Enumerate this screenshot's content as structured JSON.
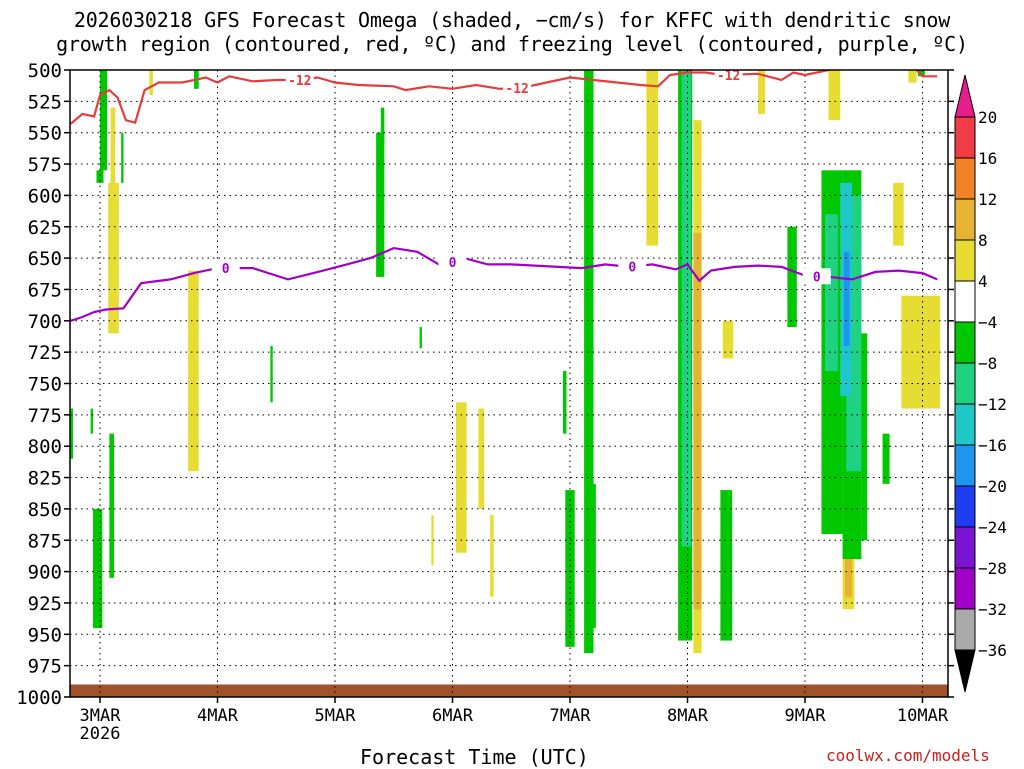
{
  "chart_data": {
    "type": "heatmap",
    "title_line1": "2026030218 GFS Forecast Omega (shaded, −cm/s) for KFFC with dendritic snow",
    "title_line2": "growth region (contoured, red, ºC) and freezing level (contoured, purple, ºC)",
    "xlabel": "Forecast Time (UTC)",
    "ylabel": "",
    "x_ticks": [
      "3MAR",
      "4MAR",
      "5MAR",
      "6MAR",
      "7MAR",
      "8MAR",
      "9MAR",
      "10MAR"
    ],
    "x_sub_label": "2026",
    "y_ticks": [
      500,
      525,
      550,
      575,
      600,
      625,
      650,
      675,
      700,
      725,
      750,
      775,
      800,
      825,
      850,
      875,
      900,
      925,
      950,
      975,
      1000
    ],
    "ylim": [
      500,
      1000
    ],
    "xlim_days": [
      2.75,
      10.125
    ],
    "colorbar": {
      "labels": [
        "20",
        "16",
        "12",
        "8",
        "4",
        "−4",
        "−8",
        "−12",
        "−16",
        "−20",
        "−24",
        "−28",
        "−32",
        "−36"
      ],
      "colors": [
        "#f03c46",
        "#f08228",
        "#e6b432",
        "#e6dc32",
        "#ffffff",
        "#00c800",
        "#1ed282",
        "#1ec8c8",
        "#1e96f0",
        "#1e3cf0",
        "#7814d2",
        "#a000c8",
        "#aaaaaa"
      ],
      "top_arrow_color": "#e61e8c",
      "bottom_arrow_color": "#000000"
    },
    "contour_minus12": {
      "label": "-12",
      "color": "#e63c3c",
      "points": [
        [
          2.75,
          543
        ],
        [
          2.85,
          535
        ],
        [
          2.95,
          537
        ],
        [
          3.0,
          520
        ],
        [
          3.08,
          516
        ],
        [
          3.15,
          522
        ],
        [
          3.22,
          540
        ],
        [
          3.3,
          542
        ],
        [
          3.38,
          516
        ],
        [
          3.5,
          510
        ],
        [
          3.7,
          510
        ],
        [
          3.9,
          506
        ],
        [
          4.0,
          510
        ],
        [
          4.1,
          505
        ],
        [
          4.3,
          509
        ],
        [
          4.5,
          508
        ],
        [
          4.7,
          508
        ],
        [
          4.85,
          506
        ],
        [
          5.0,
          510
        ],
        [
          5.2,
          512
        ],
        [
          5.5,
          513
        ],
        [
          5.6,
          516
        ],
        [
          5.8,
          513
        ],
        [
          6.0,
          515
        ],
        [
          6.2,
          512
        ],
        [
          6.4,
          515
        ],
        [
          6.6,
          514
        ],
        [
          6.8,
          510
        ],
        [
          7.0,
          506
        ],
        [
          7.2,
          508
        ],
        [
          7.4,
          510
        ],
        [
          7.6,
          512
        ],
        [
          7.75,
          513
        ],
        [
          7.85,
          504
        ],
        [
          8.0,
          502
        ],
        [
          8.15,
          502
        ],
        [
          8.3,
          504
        ],
        [
          8.6,
          503
        ],
        [
          8.8,
          508
        ],
        [
          8.9,
          502
        ],
        [
          9.0,
          504
        ],
        [
          9.2,
          500
        ],
        [
          9.4,
          497
        ],
        [
          9.5,
          490
        ],
        [
          9.6,
          495
        ],
        [
          9.7,
          493
        ],
        [
          9.9,
          495
        ],
        [
          10.0,
          505
        ],
        [
          10.125,
          505
        ]
      ]
    },
    "contour_zero": {
      "label": "0",
      "color": "#a000c8",
      "points": [
        [
          2.75,
          700
        ],
        [
          2.85,
          697
        ],
        [
          2.95,
          693
        ],
        [
          3.05,
          691
        ],
        [
          3.2,
          690
        ],
        [
          3.35,
          670
        ],
        [
          3.6,
          667
        ],
        [
          3.8,
          662
        ],
        [
          4.0,
          658
        ],
        [
          4.3,
          658
        ],
        [
          4.6,
          667
        ],
        [
          4.9,
          660
        ],
        [
          5.1,
          655
        ],
        [
          5.3,
          650
        ],
        [
          5.5,
          642
        ],
        [
          5.7,
          645
        ],
        [
          5.9,
          656
        ],
        [
          6.1,
          650
        ],
        [
          6.3,
          655
        ],
        [
          6.5,
          655
        ],
        [
          6.7,
          656
        ],
        [
          6.9,
          657
        ],
        [
          7.1,
          658
        ],
        [
          7.3,
          655
        ],
        [
          7.5,
          657
        ],
        [
          7.7,
          655
        ],
        [
          7.9,
          659
        ],
        [
          8.0,
          655
        ],
        [
          8.1,
          668
        ],
        [
          8.2,
          660
        ],
        [
          8.4,
          657
        ],
        [
          8.6,
          656
        ],
        [
          8.8,
          657
        ],
        [
          9.0,
          664
        ],
        [
          9.2,
          665
        ],
        [
          9.4,
          667
        ],
        [
          9.6,
          661
        ],
        [
          9.8,
          660
        ],
        [
          10.0,
          662
        ],
        [
          10.125,
          667
        ]
      ]
    },
    "shaded_cells": [
      {
        "x0": 3.07,
        "x1": 3.16,
        "p0": 590,
        "p1": 710,
        "c": 3
      },
      {
        "x0": 3.09,
        "x1": 3.13,
        "p0": 530,
        "p1": 590,
        "c": 3
      },
      {
        "x0": 3.75,
        "x1": 3.84,
        "p0": 660,
        "p1": 820,
        "c": 3
      },
      {
        "x0": 3.42,
        "x1": 3.45,
        "p0": 497,
        "p1": 520,
        "c": 3
      },
      {
        "x0": 6.03,
        "x1": 6.12,
        "p0": 765,
        "p1": 885,
        "c": 3
      },
      {
        "x0": 6.22,
        "x1": 6.27,
        "p0": 770,
        "p1": 850,
        "c": 3
      },
      {
        "x0": 6.32,
        "x1": 6.35,
        "p0": 855,
        "p1": 920,
        "c": 3
      },
      {
        "x0": 5.82,
        "x1": 5.84,
        "p0": 855,
        "p1": 895,
        "c": 3
      },
      {
        "x0": 7.65,
        "x1": 7.75,
        "p0": 500,
        "p1": 640,
        "c": 3
      },
      {
        "x0": 8.05,
        "x1": 8.12,
        "p0": 540,
        "p1": 965,
        "c": 3
      },
      {
        "x0": 8.28,
        "x1": 8.35,
        "p0": 495,
        "p1": 510,
        "c": 3
      },
      {
        "x0": 8.6,
        "x1": 8.66,
        "p0": 490,
        "p1": 535,
        "c": 3
      },
      {
        "x0": 8.3,
        "x1": 8.39,
        "p0": 700,
        "p1": 730,
        "c": 3
      },
      {
        "x0": 9.2,
        "x1": 9.3,
        "p0": 500,
        "p1": 540,
        "c": 3
      },
      {
        "x0": 9.75,
        "x1": 9.84,
        "p0": 590,
        "p1": 640,
        "c": 3
      },
      {
        "x0": 9.82,
        "x1": 10.15,
        "p0": 680,
        "p1": 770,
        "c": 3
      },
      {
        "x0": 9.32,
        "x1": 9.42,
        "p0": 820,
        "p1": 930,
        "c": 3
      },
      {
        "x0": 9.88,
        "x1": 9.95,
        "p0": 495,
        "p1": 510,
        "c": 3
      },
      {
        "x0": 8.05,
        "x1": 8.12,
        "p0": 630,
        "p1": 930,
        "c": 2
      },
      {
        "x0": 9.34,
        "x1": 9.4,
        "p0": 850,
        "p1": 920,
        "c": 2
      },
      {
        "x0": 9.35,
        "x1": 9.38,
        "p0": 870,
        "p1": 890,
        "c": 1
      },
      {
        "x0": 3.0,
        "x1": 3.06,
        "p0": 497,
        "p1": 580,
        "c": 5
      },
      {
        "x0": 2.97,
        "x1": 3.03,
        "p0": 580,
        "p1": 590,
        "c": 5
      },
      {
        "x0": 3.18,
        "x1": 3.2,
        "p0": 550,
        "p1": 590,
        "c": 5
      },
      {
        "x0": 3.8,
        "x1": 3.84,
        "p0": 497,
        "p1": 515,
        "c": 5
      },
      {
        "x0": 2.94,
        "x1": 3.02,
        "p0": 850,
        "p1": 945,
        "c": 5
      },
      {
        "x0": 3.08,
        "x1": 3.12,
        "p0": 790,
        "p1": 905,
        "c": 5
      },
      {
        "x0": 2.92,
        "x1": 2.94,
        "p0": 770,
        "p1": 790,
        "c": 5
      },
      {
        "x0": 2.75,
        "x1": 2.77,
        "p0": 770,
        "p1": 810,
        "c": 5
      },
      {
        "x0": 4.45,
        "x1": 4.47,
        "p0": 720,
        "p1": 765,
        "c": 5
      },
      {
        "x0": 5.35,
        "x1": 5.42,
        "p0": 550,
        "p1": 665,
        "c": 5
      },
      {
        "x0": 5.39,
        "x1": 5.42,
        "p0": 530,
        "p1": 560,
        "c": 5
      },
      {
        "x0": 5.72,
        "x1": 5.74,
        "p0": 705,
        "p1": 722,
        "c": 5
      },
      {
        "x0": 6.96,
        "x1": 7.04,
        "p0": 835,
        "p1": 960,
        "c": 5
      },
      {
        "x0": 7.12,
        "x1": 7.2,
        "p0": 497,
        "p1": 965,
        "c": 5
      },
      {
        "x0": 7.18,
        "x1": 7.22,
        "p0": 830,
        "p1": 945,
        "c": 5
      },
      {
        "x0": 6.94,
        "x1": 6.97,
        "p0": 740,
        "p1": 790,
        "c": 5
      },
      {
        "x0": 7.92,
        "x1": 8.04,
        "p0": 480,
        "p1": 955,
        "c": 5
      },
      {
        "x0": 8.28,
        "x1": 8.38,
        "p0": 835,
        "p1": 955,
        "c": 5
      },
      {
        "x0": 8.85,
        "x1": 8.93,
        "p0": 625,
        "p1": 705,
        "c": 5
      },
      {
        "x0": 9.14,
        "x1": 9.32,
        "p0": 580,
        "p1": 870,
        "c": 5
      },
      {
        "x0": 9.32,
        "x1": 9.48,
        "p0": 580,
        "p1": 890,
        "c": 5
      },
      {
        "x0": 9.48,
        "x1": 9.53,
        "p0": 710,
        "p1": 875,
        "c": 5
      },
      {
        "x0": 9.66,
        "x1": 9.72,
        "p0": 790,
        "p1": 830,
        "c": 5
      },
      {
        "x0": 9.96,
        "x1": 10.02,
        "p0": 490,
        "p1": 505,
        "c": 5
      },
      {
        "x0": 7.95,
        "x1": 8.03,
        "p0": 480,
        "p1": 880,
        "c": 6
      },
      {
        "x0": 9.17,
        "x1": 9.28,
        "p0": 615,
        "p1": 740,
        "c": 6
      },
      {
        "x0": 9.35,
        "x1": 9.48,
        "p0": 600,
        "p1": 820,
        "c": 6
      },
      {
        "x0": 9.3,
        "x1": 9.4,
        "p0": 590,
        "p1": 760,
        "c": 7
      },
      {
        "x0": 9.33,
        "x1": 9.38,
        "p0": 645,
        "p1": 720,
        "c": 8
      }
    ],
    "ground_band": {
      "top_pressure": 990,
      "color": "#a0522d"
    }
  },
  "credit": "coolwx.com/models"
}
